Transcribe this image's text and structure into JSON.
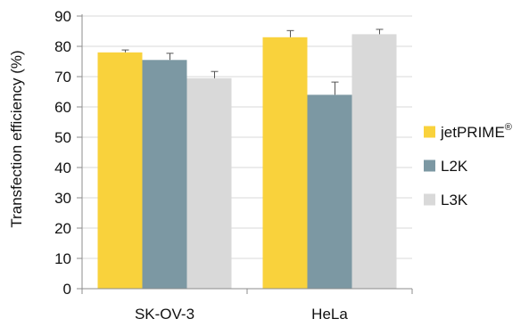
{
  "chart_data": {
    "type": "bar",
    "title": "",
    "xlabel": "",
    "ylabel": "Transfection efficiency (%)",
    "ylim": [
      0,
      90
    ],
    "yticks": [
      0,
      10,
      20,
      30,
      40,
      50,
      60,
      70,
      80,
      90
    ],
    "grid": true,
    "legend_position": "right",
    "categories": [
      "SK-OV-3",
      "HeLa"
    ],
    "series": [
      {
        "name": "jetPRIME",
        "name_superscript": "®",
        "color": "#f9d23c",
        "values": [
          78,
          83
        ],
        "errors": [
          0.8,
          2.2
        ]
      },
      {
        "name": "L2K",
        "color": "#7c98a3",
        "values": [
          75.5,
          64
        ],
        "errors": [
          2.2,
          4.2
        ]
      },
      {
        "name": "L3K",
        "color": "#d9d9d9",
        "values": [
          69.5,
          84
        ],
        "errors": [
          2.2,
          1.6
        ]
      }
    ]
  }
}
